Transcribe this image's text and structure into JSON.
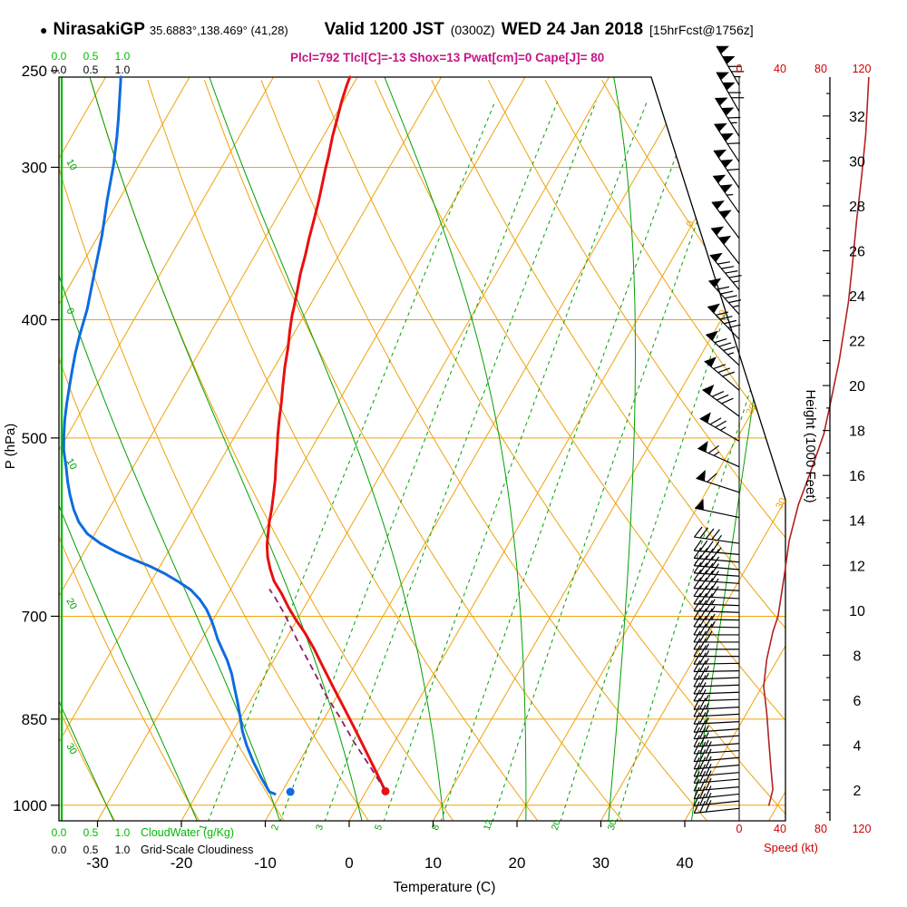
{
  "header": {
    "station_bullet": "●",
    "station": "NirasakiGP",
    "coords": "35.6883°,138.469° (41,28)",
    "valid": "Valid 1200 JST",
    "valid_z": "(0300Z)",
    "valid_date": "WED 24 Jan 2018",
    "fcst": "[15hrFcst@1756z]",
    "params": "Plcl=792 Tlcl[C]=-13 Shox=13 Pwat[cm]=0 Cape[J]= 80"
  },
  "axes": {
    "pressure_label": "P (hPa)",
    "pressure_ticks": [
      250,
      300,
      400,
      500,
      700,
      850,
      1000
    ],
    "temp_label": "Temperature (C)",
    "temp_ticks": [
      -30,
      -20,
      -10,
      0,
      10,
      20,
      30,
      40
    ],
    "height_label": "Height (1000 Feet)",
    "height_ticks_kft": [
      2,
      4,
      6,
      8,
      10,
      12,
      14,
      16,
      18,
      20,
      22,
      24,
      26,
      28,
      30,
      32
    ],
    "speed_label": "Speed (kt)",
    "speed_ticks_kt": [
      0,
      40,
      80,
      120
    ],
    "cloudwater_label": "CloudWater (g/Kg)",
    "cloudiness_label": "Grid-Scale Cloudiness",
    "cw_scale": [
      "0.0",
      "0.5",
      "1.0"
    ]
  },
  "colors": {
    "orange": "#EFA20A",
    "green": "#00A000",
    "cloudgreen": "#00BB00",
    "blue": "#0F6BE0",
    "red": "#E81010",
    "purple": "#8E1A6B",
    "speedred": "#B22222",
    "magenta": "#C71585",
    "black": "#000000"
  },
  "chart_data": {
    "type": "skewt_logp_sounding",
    "pressure_axis": {
      "top_hpa": 253,
      "bottom_hpa": 1030,
      "ticks": [
        250,
        300,
        400,
        500,
        700,
        850,
        1000
      ]
    },
    "temp_axis": {
      "unit": "C",
      "ticks": [
        -30,
        -20,
        -10,
        0,
        10,
        20,
        30,
        40
      ]
    },
    "grid": {
      "isobars": [
        300,
        400,
        500,
        700,
        850,
        1000
      ],
      "isotherms_c": [
        -110,
        -100,
        -90,
        -80,
        -70,
        -60,
        -50,
        -40,
        -30,
        -20,
        -10,
        0,
        10,
        20,
        30,
        40,
        50
      ],
      "dry_adiabats_c": [
        -40,
        -30,
        -20,
        -10,
        0,
        10,
        20,
        30,
        40,
        50,
        60,
        70,
        80,
        90,
        100,
        110
      ],
      "moist_adiabats_c": [
        -60,
        -50,
        -40,
        -30,
        -20,
        -10,
        0,
        10,
        20,
        30,
        40
      ],
      "mixing_ratio_gkg": [
        1,
        2,
        3,
        5,
        8,
        12,
        20,
        30
      ],
      "isotherm_edge_labels": [
        "0",
        "10",
        "20",
        "30"
      ],
      "moist_left_labels": [
        "10",
        "0",
        "10",
        "20",
        "30"
      ]
    },
    "temperature_profile": [
      [
        974,
        2.3
      ],
      [
        941,
        0.0
      ],
      [
        900,
        -3.0
      ],
      [
        865,
        -5.7
      ],
      [
        834,
        -8.2
      ],
      [
        801,
        -11.0
      ],
      [
        770,
        -13.7
      ],
      [
        744,
        -16.0
      ],
      [
        722,
        -18.2
      ],
      [
        705,
        -20.1
      ],
      [
        688,
        -21.9
      ],
      [
        671,
        -23.6
      ],
      [
        655,
        -25.4
      ],
      [
        640,
        -26.7
      ],
      [
        626,
        -27.8
      ],
      [
        612,
        -28.7
      ],
      [
        600,
        -29.3
      ],
      [
        586,
        -30.0
      ],
      [
        572,
        -30.6
      ],
      [
        558,
        -31.3
      ],
      [
        541,
        -32.2
      ],
      [
        525,
        -33.2
      ],
      [
        510,
        -34.1
      ],
      [
        498,
        -34.9
      ],
      [
        482,
        -35.9
      ],
      [
        467,
        -36.8
      ],
      [
        452,
        -37.8
      ],
      [
        437,
        -38.8
      ],
      [
        422,
        -39.7
      ],
      [
        408,
        -40.7
      ],
      [
        396,
        -41.5
      ],
      [
        392,
        -41.7
      ],
      [
        379,
        -42.5
      ],
      [
        367,
        -43.3
      ],
      [
        354,
        -44.0
      ],
      [
        343,
        -44.7
      ],
      [
        331,
        -45.4
      ],
      [
        320,
        -46.1
      ],
      [
        309,
        -46.9
      ],
      [
        301,
        -47.5
      ],
      [
        294,
        -48.0
      ],
      [
        283,
        -48.9
      ],
      [
        273,
        -49.6
      ],
      [
        265,
        -50.2
      ],
      [
        257,
        -50.7
      ],
      [
        253,
        -50.9
      ]
    ],
    "dewpoint_profile": [
      [
        979,
        -10.7
      ],
      [
        975,
        -11.5
      ],
      [
        950,
        -13.4
      ],
      [
        921,
        -15.5
      ],
      [
        893,
        -17.4
      ],
      [
        869,
        -18.9
      ],
      [
        845,
        -20.2
      ],
      [
        824,
        -21.4
      ],
      [
        801,
        -22.8
      ],
      [
        780,
        -24.1
      ],
      [
        760,
        -25.6
      ],
      [
        745,
        -26.9
      ],
      [
        730,
        -28.2
      ],
      [
        717,
        -29.2
      ],
      [
        705,
        -30.2
      ],
      [
        691,
        -31.5
      ],
      [
        678,
        -33.0
      ],
      [
        666,
        -34.7
      ],
      [
        656,
        -36.7
      ],
      [
        646,
        -38.9
      ],
      [
        637,
        -41.2
      ],
      [
        629,
        -43.6
      ],
      [
        620,
        -46.2
      ],
      [
        610,
        -48.7
      ],
      [
        599,
        -50.9
      ],
      [
        586,
        -52.7
      ],
      [
        572,
        -54.2
      ],
      [
        557,
        -55.6
      ],
      [
        543,
        -56.8
      ],
      [
        528,
        -58.0
      ],
      [
        512,
        -59.4
      ],
      [
        498,
        -60.4
      ],
      [
        483,
        -61.4
      ],
      [
        468,
        -62.3
      ],
      [
        454,
        -63.1
      ],
      [
        440,
        -63.9
      ],
      [
        426,
        -64.7
      ],
      [
        412,
        -65.4
      ],
      [
        392,
        -66.3
      ],
      [
        365,
        -68.0
      ],
      [
        341,
        -69.6
      ],
      [
        319,
        -71.4
      ],
      [
        298,
        -73.1
      ],
      [
        283,
        -74.6
      ],
      [
        274,
        -75.6
      ],
      [
        256,
        -77.8
      ],
      [
        253,
        -78.2
      ]
    ],
    "parcel_profile": [
      [
        974,
        2.3
      ],
      [
        930,
        -1.2
      ],
      [
        888,
        -4.8
      ],
      [
        846,
        -8.3
      ],
      [
        808,
        -11.8
      ],
      [
        792,
        -13.1
      ],
      [
        763,
        -15.7
      ],
      [
        731,
        -18.7
      ],
      [
        697,
        -21.9
      ],
      [
        676,
        -24.1
      ],
      [
        665,
        -25.4
      ]
    ],
    "surface_temp_marker": [
      974,
      2.3
    ],
    "surface_dew_marker": [
      975,
      -9.0
    ],
    "wind_barbs": [
      [
        257,
        330,
        125
      ],
      [
        270,
        330,
        122
      ],
      [
        283,
        328,
        118
      ],
      [
        297,
        327,
        114
      ],
      [
        312,
        326,
        110
      ],
      [
        327,
        325,
        106
      ],
      [
        343,
        323,
        103
      ],
      [
        360,
        322,
        100
      ],
      [
        378,
        320,
        98
      ],
      [
        396,
        318,
        95
      ],
      [
        415,
        316,
        92
      ],
      [
        436,
        313,
        88
      ],
      [
        457,
        310,
        84
      ],
      [
        480,
        306,
        80
      ],
      [
        503,
        300,
        75
      ],
      [
        528,
        294,
        68
      ],
      [
        554,
        288,
        60
      ],
      [
        581,
        282,
        53
      ],
      [
        610,
        278,
        47
      ],
      [
        623,
        275,
        45
      ],
      [
        632,
        275,
        44
      ],
      [
        641,
        275,
        43
      ],
      [
        649,
        274,
        42
      ],
      [
        658,
        274,
        41
      ],
      [
        667,
        273,
        40
      ],
      [
        677,
        273,
        40
      ],
      [
        686,
        272,
        39
      ],
      [
        695,
        272,
        38
      ],
      [
        705,
        271,
        38
      ],
      [
        715,
        271,
        35
      ],
      [
        725,
        270,
        33
      ],
      [
        735,
        270,
        31
      ],
      [
        745,
        270,
        29
      ],
      [
        755,
        270,
        28
      ],
      [
        765,
        269,
        27
      ],
      [
        776,
        269,
        26
      ],
      [
        786,
        268,
        25
      ],
      [
        797,
        268,
        24
      ],
      [
        808,
        268,
        24
      ],
      [
        819,
        268,
        25
      ],
      [
        831,
        267,
        26
      ],
      [
        842,
        267,
        27
      ],
      [
        854,
        267,
        27
      ],
      [
        866,
        266,
        28
      ],
      [
        877,
        266,
        29
      ],
      [
        890,
        266,
        29
      ],
      [
        902,
        266,
        30
      ],
      [
        914,
        265,
        30
      ],
      [
        927,
        265,
        31
      ],
      [
        940,
        265,
        31
      ],
      [
        952,
        265,
        32
      ],
      [
        966,
        265,
        32
      ],
      [
        979,
        264,
        33
      ],
      [
        992,
        264,
        32
      ],
      [
        1006,
        264,
        30
      ]
    ],
    "speed_profile_kt": [
      [
        253,
        127
      ],
      [
        282,
        124
      ],
      [
        305,
        120
      ],
      [
        332,
        115
      ],
      [
        360,
        111
      ],
      [
        387,
        107
      ],
      [
        432,
        98
      ],
      [
        470,
        89
      ],
      [
        496,
        83
      ],
      [
        530,
        71
      ],
      [
        567,
        58
      ],
      [
        607,
        49
      ],
      [
        650,
        44
      ],
      [
        700,
        38
      ],
      [
        721,
        33
      ],
      [
        759,
        27
      ],
      [
        799,
        24
      ],
      [
        841,
        27
      ],
      [
        885,
        29
      ],
      [
        931,
        31
      ],
      [
        971,
        33
      ],
      [
        1001,
        29
      ]
    ],
    "cloudwater_profile_gkg": 0.0,
    "height_axis_kft": [
      2,
      4,
      6,
      8,
      10,
      12,
      14,
      16,
      18,
      20,
      22,
      24,
      26,
      28,
      30,
      32
    ],
    "speed_axis_kt": [
      0,
      40,
      80,
      120
    ]
  }
}
